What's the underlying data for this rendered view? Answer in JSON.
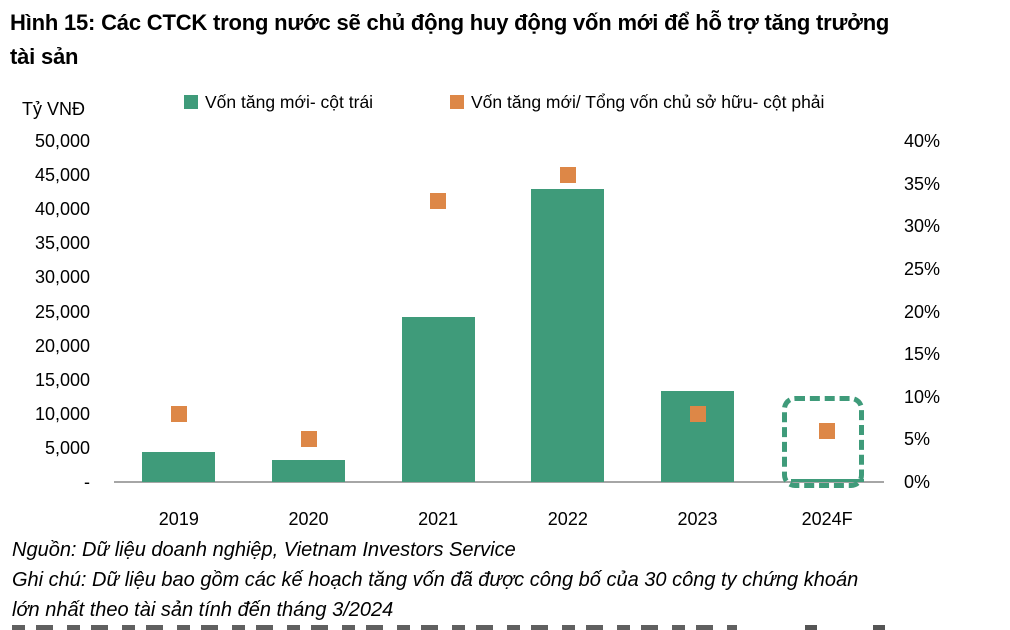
{
  "figure": {
    "title": "Hình 15: Các CTCK trong nước sẽ chủ động huy động vốn mới để hỗ trợ tăng trưởng tài sản",
    "title_lines": [
      "Hình 15: Các CTCK trong nước sẽ chủ động huy động vốn mới để hỗ trợ tăng trưởng",
      "tài sản"
    ],
    "unit_label": "Tỷ VNĐ",
    "source": "Nguồn: Dữ liệu doanh nghiệp, Vietnam Investors Service",
    "note": "Ghi chú: Dữ liệu bao gồm các kế hoạch tăng vốn đã được công bố của 30 công ty chứng khoán lớn nhất theo tài sản tính đến tháng 3/2024",
    "note_lines": [
      "Ghi chú: Dữ liệu bao gồm các kế hoạch tăng vốn đã được công bố của 30 công ty chứng khoán",
      "lớn nhất theo tài sản tính đến tháng 3/2024"
    ]
  },
  "legend": {
    "items": [
      {
        "label": "Vốn tăng mới- cột trái",
        "color": "#3F9B7A",
        "marker": "square"
      },
      {
        "label": "Vốn tăng mới/ Tổng vốn chủ sở hữu- cột phải",
        "color": "#DD8747",
        "marker": "square"
      }
    ]
  },
  "chart_data": {
    "type": "bar",
    "subtype": "combo-bar-with-scatter-squares",
    "categories": [
      "2019",
      "2020",
      "2021",
      "2022",
      "2023",
      "2024F"
    ],
    "series": [
      {
        "name": "Vốn tăng mới- cột trái",
        "type": "bar",
        "axis": "left",
        "color": "#3F9B7A",
        "values": [
          4400,
          3200,
          24200,
          43000,
          13400,
          500
        ]
      },
      {
        "name": "Vốn tăng mới/ Tổng vốn chủ sở hữu- cột phải",
        "type": "scatter-square",
        "axis": "right",
        "color": "#DD8747",
        "values": [
          8,
          5,
          33,
          36,
          8,
          6
        ],
        "unit": "%"
      }
    ],
    "left_axis": {
      "title": "Tỷ VNĐ",
      "min": 0,
      "max": 50000,
      "step": 5000,
      "tick_labels": [
        "50,000",
        "45,000",
        "40,000",
        "35,000",
        "30,000",
        "25,000",
        "20,000",
        "15,000",
        "10,000",
        "5,000",
        "-"
      ]
    },
    "right_axis": {
      "min": 0,
      "max": 40,
      "step": 5,
      "tick_labels": [
        "40%",
        "35%",
        "30%",
        "25%",
        "20%",
        "15%",
        "10%",
        "5%",
        "0%"
      ]
    },
    "highlight": {
      "category": "2024F",
      "style": "dashed-rounded-box",
      "color": "#3F9B7A"
    },
    "grid": false,
    "legend_position": "top"
  },
  "colors": {
    "bar_green": "#3F9B7A",
    "marker_orange": "#DD8747",
    "axis_line": "#A6A6A6",
    "text": "#000000",
    "background": "#FFFFFF"
  }
}
